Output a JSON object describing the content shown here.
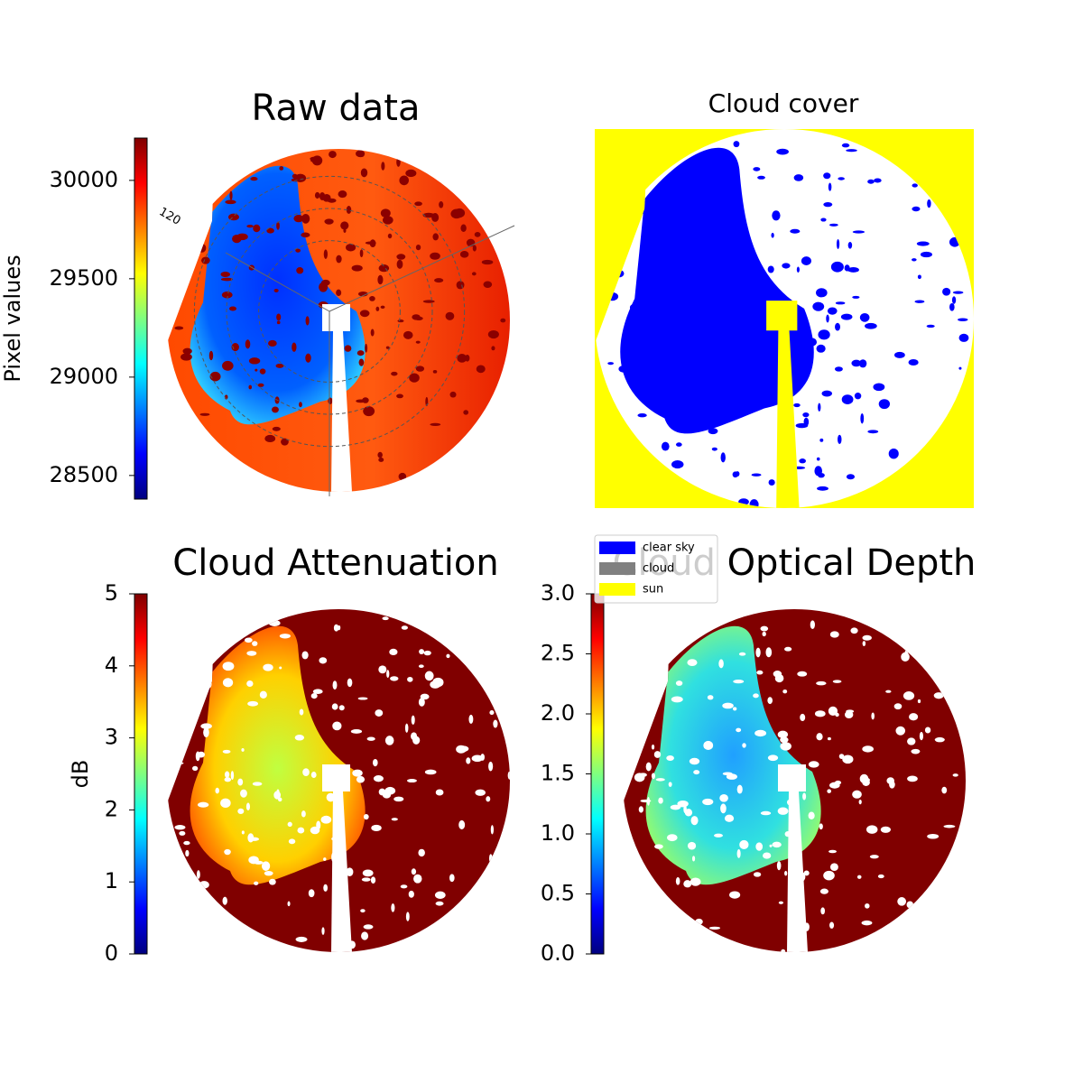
{
  "chart_data": [
    {
      "type": "image",
      "title": "Raw data",
      "colormap": "jet",
      "colorbar": {
        "label": "Pixel values",
        "lim": [
          28380,
          30215
        ],
        "ticks": [
          28500,
          29000,
          29500,
          30000
        ]
      },
      "annotations": [
        "120"
      ]
    },
    {
      "type": "image",
      "title": "Cloud cover",
      "legend": [
        {
          "name": "clear sky",
          "color": "#0000ff"
        },
        {
          "name": "cloud",
          "color": "#808080"
        },
        {
          "name": "sun",
          "color": "#ffff00"
        }
      ]
    },
    {
      "type": "image",
      "title": "Cloud Attenuation",
      "colormap": "jet",
      "colorbar": {
        "label": "dB",
        "lim": [
          0,
          5
        ],
        "ticks": [
          0,
          1,
          2,
          3,
          4,
          5
        ]
      }
    },
    {
      "type": "image",
      "title": "Cloud Optical Depth",
      "colormap": "jet",
      "colorbar": {
        "lim": [
          0,
          3
        ],
        "ticks": [
          {
            "value": 0,
            "label": "0.0"
          },
          {
            "value": 0.5,
            "label": "0.5"
          },
          {
            "value": 1,
            "label": "1.0"
          },
          {
            "value": 1.5,
            "label": "1.5"
          },
          {
            "value": 2,
            "label": "2.0"
          },
          {
            "value": 2.5,
            "label": "2.5"
          },
          {
            "value": 3,
            "label": "3.0"
          }
        ]
      }
    }
  ]
}
